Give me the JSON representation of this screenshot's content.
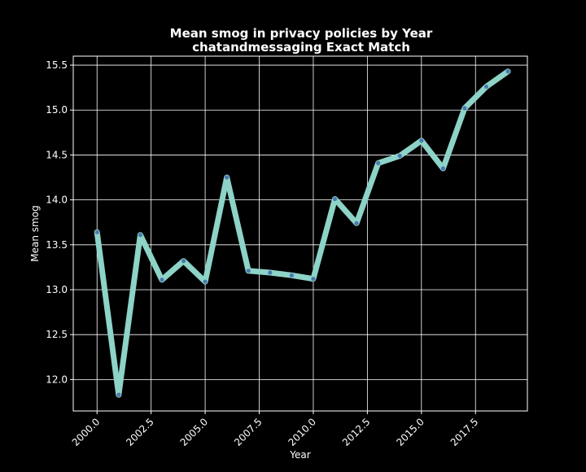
{
  "chart_data": {
    "type": "line",
    "title": "Mean smog in privacy policies by Year",
    "subtitle": "chatandmessaging Exact Match",
    "xlabel": "Year",
    "ylabel": "Mean smog",
    "xlim": [
      1998.9,
      2019.9
    ],
    "ylim": [
      11.65,
      15.6
    ],
    "x_ticks": [
      2000.0,
      2002.5,
      2005.0,
      2007.5,
      2010.0,
      2012.5,
      2015.0,
      2017.5
    ],
    "x_tick_labels": [
      "2000.0",
      "2002.5",
      "2005.0",
      "2007.5",
      "2010.0",
      "2012.5",
      "2015.0",
      "2017.5"
    ],
    "y_ticks": [
      12.0,
      12.5,
      13.0,
      13.5,
      14.0,
      14.5,
      15.0,
      15.5
    ],
    "y_tick_labels": [
      "12.0",
      "12.5",
      "13.0",
      "13.5",
      "14.0",
      "14.5",
      "15.0",
      "15.5"
    ],
    "grid": true,
    "series": [
      {
        "x": [
          2000,
          2001,
          2002,
          2003,
          2004,
          2005,
          2006,
          2007,
          2008,
          2009,
          2010,
          2011,
          2012,
          2013,
          2014,
          2015,
          2016,
          2017,
          2018,
          2019
        ],
        "values": [
          13.64,
          11.83,
          13.61,
          13.11,
          13.32,
          13.09,
          14.25,
          13.21,
          13.19,
          13.16,
          13.12,
          14.01,
          13.74,
          14.41,
          14.49,
          14.66,
          14.35,
          15.02,
          15.26,
          15.43
        ],
        "color": "#8dd3c7",
        "marker_color": "#4a78b0"
      }
    ]
  },
  "colors": {
    "background": "#000000",
    "foreground": "#ffffff",
    "grid": "#ffffff"
  }
}
